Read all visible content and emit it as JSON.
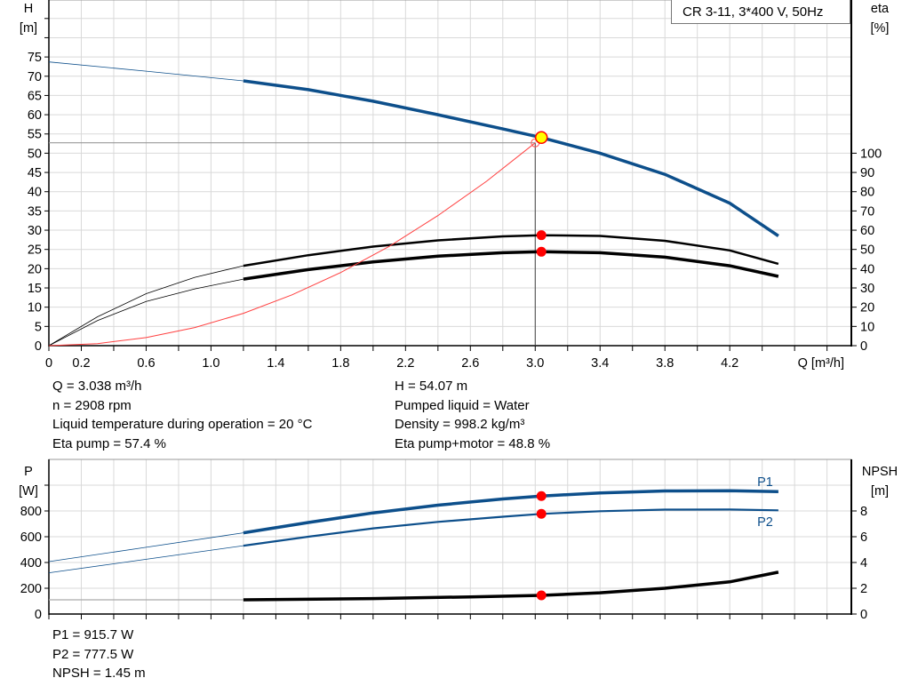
{
  "chart_data": [
    {
      "type": "line",
      "title": "CR 3-11, 3*400 V, 50Hz",
      "xlabel": "Q [m³/h]",
      "ylabel_left": [
        "H",
        "[m]"
      ],
      "ylabel_right": [
        "eta",
        "[%]"
      ],
      "x_ticks": [
        "0",
        "0.2",
        "0.6",
        "1.0",
        "1.4",
        "1.8",
        "2.2",
        "2.6",
        "3.0",
        "3.4",
        "3.8",
        "4.2"
      ],
      "y_left_ticks": [
        "0",
        "5",
        "10",
        "15",
        "20",
        "25",
        "30",
        "35",
        "40",
        "45",
        "50",
        "55",
        "60",
        "65",
        "70",
        "75"
      ],
      "y_right_ticks": [
        "0",
        "10",
        "20",
        "30",
        "40",
        "50",
        "60",
        "70",
        "80",
        "90",
        "100"
      ],
      "xlim": [
        0,
        4.95
      ],
      "ylim_left": [
        0,
        89.8
      ],
      "ylim_right": [
        0,
        179.6
      ],
      "grid": true,
      "operating_range_start_q": 1.2,
      "series": [
        {
          "key": "H",
          "axis": "left",
          "color": "#0d4f8b",
          "points": [
            [
              0,
              73.7
            ],
            [
              0.6,
              71.3
            ],
            [
              1.2,
              68.8
            ],
            [
              1.6,
              66.5
            ],
            [
              2.0,
              63.5
            ],
            [
              2.4,
              60.0
            ],
            [
              2.8,
              56.3
            ],
            [
              3.038,
              54.07
            ],
            [
              3.4,
              50.0
            ],
            [
              3.8,
              44.5
            ],
            [
              4.2,
              37.0
            ],
            [
              4.5,
              28.5
            ]
          ]
        },
        {
          "key": "eta_pump",
          "axis": "right",
          "color": "#000000",
          "points": [
            [
              0,
              0
            ],
            [
              0.3,
              15
            ],
            [
              0.6,
              27
            ],
            [
              0.9,
              35.5
            ],
            [
              1.2,
              41.5
            ],
            [
              1.6,
              47
            ],
            [
              2.0,
              51.5
            ],
            [
              2.4,
              54.7
            ],
            [
              2.8,
              56.8
            ],
            [
              3.038,
              57.4
            ],
            [
              3.4,
              57
            ],
            [
              3.8,
              54.5
            ],
            [
              4.2,
              49.5
            ],
            [
              4.5,
              42.5
            ]
          ]
        },
        {
          "key": "eta_total",
          "axis": "right",
          "color": "#000000",
          "points": [
            [
              0,
              0
            ],
            [
              0.3,
              13
            ],
            [
              0.6,
              23
            ],
            [
              0.9,
              29.5
            ],
            [
              1.2,
              34.6
            ],
            [
              1.6,
              39.5
            ],
            [
              2.0,
              43.5
            ],
            [
              2.4,
              46.5
            ],
            [
              2.8,
              48.3
            ],
            [
              3.038,
              48.8
            ],
            [
              3.4,
              48.3
            ],
            [
              3.8,
              46
            ],
            [
              4.2,
              41.5
            ],
            [
              4.5,
              36
            ]
          ]
        },
        {
          "key": "system_curve",
          "axis": "left",
          "color": "#ff4040",
          "points": [
            [
              0,
              0
            ],
            [
              0.3,
              0.53
            ],
            [
              0.6,
              2.1
            ],
            [
              0.9,
              4.7
            ],
            [
              1.2,
              8.4
            ],
            [
              1.5,
              13.2
            ],
            [
              1.8,
              19
            ],
            [
              2.1,
              25.8
            ],
            [
              2.4,
              33.8
            ],
            [
              2.7,
              42.7
            ],
            [
              3.0,
              52.7
            ]
          ]
        }
      ],
      "duty_point": {
        "q": 3.038,
        "h": 54.07,
        "eta_pump": 57.4,
        "eta_total": 48.8
      },
      "system_point": {
        "q": 3.0,
        "h": 52.7
      },
      "colors": {
        "duty_point_fill": "#ffff00",
        "marker": "#ff0000",
        "grid": "#d9d9d9"
      }
    },
    {
      "type": "line",
      "ylabel_left": [
        "P",
        "[W]"
      ],
      "ylabel_right": [
        "NPSH",
        "[m]"
      ],
      "y_left_ticks": [
        "0",
        "200",
        "400",
        "600",
        "800"
      ],
      "y_right_ticks": [
        "0",
        "2",
        "4",
        "6",
        "8"
      ],
      "xlim": [
        0,
        4.95
      ],
      "ylim_left": [
        0,
        1200
      ],
      "ylim_right": [
        0,
        12
      ],
      "grid": true,
      "series": [
        {
          "key": "P1",
          "name": "P1",
          "axis": "left",
          "color": "#0d4f8b",
          "points": [
            [
              0,
              407
            ],
            [
              0.6,
              518
            ],
            [
              1.2,
              630
            ],
            [
              1.6,
              710
            ],
            [
              2.0,
              785
            ],
            [
              2.4,
              845
            ],
            [
              2.8,
              893
            ],
            [
              3.038,
              915.7
            ],
            [
              3.4,
              940
            ],
            [
              3.8,
              955
            ],
            [
              4.2,
              957
            ],
            [
              4.5,
              950
            ]
          ]
        },
        {
          "key": "P2",
          "name": "P2",
          "axis": "left",
          "color": "#0d4f8b",
          "points": [
            [
              0,
              320
            ],
            [
              0.6,
              425
            ],
            [
              1.2,
              530
            ],
            [
              1.6,
              600
            ],
            [
              2.0,
              665
            ],
            [
              2.4,
              715
            ],
            [
              2.8,
              755
            ],
            [
              3.038,
              777.5
            ],
            [
              3.4,
              798
            ],
            [
              3.8,
              810
            ],
            [
              4.2,
              811
            ],
            [
              4.5,
              805
            ]
          ]
        },
        {
          "key": "NPSH",
          "axis": "right",
          "color": "#000000",
          "points": [
            [
              0,
              1.1
            ],
            [
              1.2,
              1.1
            ],
            [
              2.0,
              1.2
            ],
            [
              2.6,
              1.33
            ],
            [
              3.038,
              1.45
            ],
            [
              3.4,
              1.65
            ],
            [
              3.8,
              2.0
            ],
            [
              4.2,
              2.5
            ],
            [
              4.5,
              3.25
            ]
          ]
        }
      ],
      "duty_point": {
        "q": 3.038,
        "p1": 915.7,
        "p2": 777.5,
        "npsh": 1.45
      }
    }
  ],
  "info_top_left": [
    "Q = 3.038 m³/h",
    "n = 2908 rpm",
    "Liquid temperature during operation = 20 °C",
    "Eta pump = 57.4 %"
  ],
  "info_top_right": [
    "H = 54.07 m",
    "Pumped liquid = Water",
    "Density = 998.2 kg/m³",
    "Eta pump+motor = 48.8 %"
  ],
  "info_bottom": [
    "P1 = 915.7 W",
    "P2 = 777.5 W",
    "NPSH = 1.45 m"
  ]
}
